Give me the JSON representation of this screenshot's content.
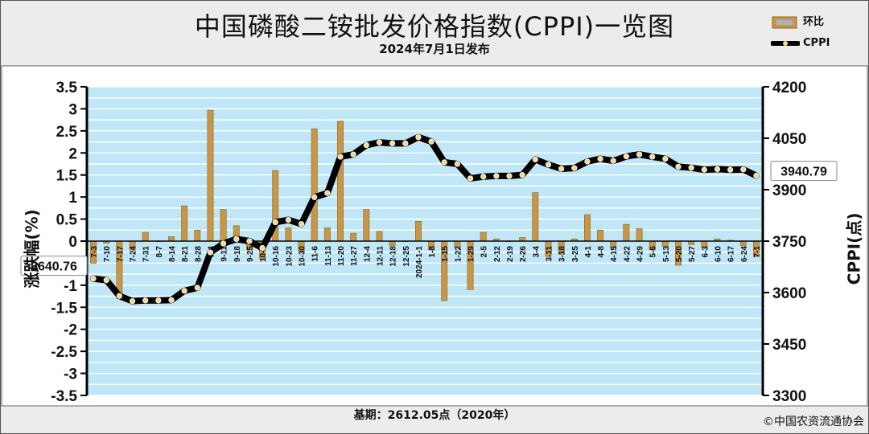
{
  "header": {
    "title": "中国磷酸二铵批发价格指数(CPPI)一览图",
    "subtitle": "2024年7月1日发布"
  },
  "footer": {
    "base": "基期：2612.05点（2020年）",
    "copyright": "©中国农资流通协会"
  },
  "colors": {
    "bar": "#c99645",
    "line": "#000000",
    "marker": "#f6d98b",
    "plot_bg": "#bfe7f7",
    "grid": "#ffffff"
  },
  "chart_data": {
    "type": "bar",
    "categories": [
      "7-3",
      "7-10",
      "7-17",
      "7-24",
      "7-31",
      "8-7",
      "8-14",
      "8-21",
      "8-28",
      "9-4",
      "9-11",
      "9-18",
      "9-25",
      "10-9",
      "10-16",
      "10-23",
      "10-30",
      "11-6",
      "11-13",
      "11-20",
      "11-27",
      "12-4",
      "12-11",
      "12-18",
      "12-25",
      "2024-1-1",
      "1-8",
      "1-15",
      "1-22",
      "1-29",
      "2-5",
      "2-12",
      "2-19",
      "2-26",
      "3-4",
      "3-11",
      "3-18",
      "3-25",
      "4-1",
      "4-8",
      "4-15",
      "4-22",
      "4-29",
      "5-6",
      "5-13",
      "5-20",
      "5-27",
      "6-3",
      "6-10",
      "6-17",
      "6-24",
      "7-1"
    ],
    "ylim": [
      -3.5,
      3.5
    ],
    "y2lim": [
      3300,
      4200
    ],
    "yticks": [
      "3.5",
      "3",
      "2.5",
      "2",
      "1.5",
      "1",
      "0.5",
      "0",
      "-0.5",
      "-1",
      "-1.5",
      "-2",
      "-2.5",
      "-3",
      "-3.5"
    ],
    "y2ticks": [
      "4200",
      "4050",
      "3900",
      "3750",
      "3600",
      "3450",
      "3300"
    ],
    "ylabel": "涨跌幅(%)",
    "y2label": "CPPI(点)",
    "legend": {
      "bar": "环比",
      "line": "CPPI",
      "position": "top-right"
    },
    "series": [
      {
        "name": "环比",
        "type": "bar",
        "axis": "left",
        "values": [
          -0.5,
          -0.05,
          -1.3,
          -0.2,
          0.2,
          0.0,
          0.1,
          0.8,
          0.25,
          2.97,
          0.72,
          0.35,
          -0.2,
          -0.4,
          1.6,
          0.3,
          -0.25,
          2.55,
          0.3,
          2.72,
          0.18,
          0.72,
          0.22,
          -0.1,
          0.0,
          0.45,
          -0.2,
          -1.35,
          -0.15,
          -1.1,
          0.2,
          0.05,
          0.0,
          0.08,
          1.1,
          -0.35,
          -0.3,
          0.05,
          0.6,
          0.25,
          -0.15,
          0.38,
          0.28,
          -0.2,
          -0.12,
          -0.55,
          -0.08,
          -0.15,
          0.05,
          0.02,
          -0.1,
          -0.35
        ]
      },
      {
        "name": "CPPI",
        "type": "line",
        "axis": "right",
        "values": [
          3640.76,
          3636,
          3590,
          3575,
          3577,
          3577,
          3578,
          3605,
          3614,
          3717,
          3743,
          3756,
          3750,
          3730,
          3805,
          3812,
          3800,
          3878,
          3890,
          3996,
          4003,
          4030,
          4038,
          4035,
          4035,
          4053,
          4040,
          3980,
          3975,
          3933,
          3938,
          3940,
          3940,
          3943,
          3988,
          3973,
          3961,
          3963,
          3982,
          3990,
          3984,
          3997,
          4003,
          3996,
          3990,
          3967,
          3964,
          3958,
          3960,
          3958,
          3959,
          3940.79
        ]
      }
    ],
    "annotations": [
      {
        "label": "3640.76",
        "index": 0,
        "side": "left"
      },
      {
        "label": "3940.79",
        "index": 51,
        "side": "right"
      }
    ]
  }
}
